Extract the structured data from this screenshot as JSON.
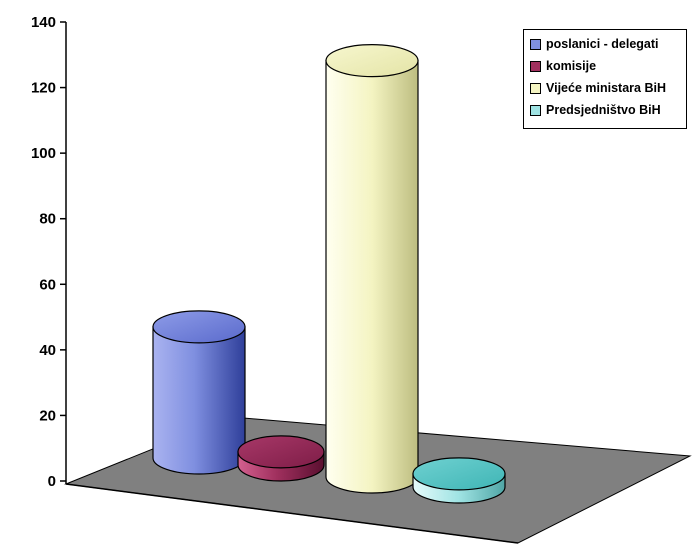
{
  "chart_data": {
    "type": "bar",
    "style": "3d-cylinder",
    "title": "",
    "xlabel": "",
    "ylabel": "",
    "ylim": [
      0,
      140
    ],
    "yticks": [
      0,
      20,
      40,
      60,
      80,
      100,
      120,
      140
    ],
    "grid": false,
    "legend_position": "top-right",
    "floor_color": "#808080",
    "series": [
      {
        "name": "poslanici - delegati",
        "value": 40,
        "color": "#7f8fe0"
      },
      {
        "name": "komisije",
        "value": 4,
        "color": "#a0305e"
      },
      {
        "name": "Vijeće ministara BiH",
        "value": 127,
        "color": "#f4f4c2"
      },
      {
        "name": "Predsjedništvo BiH",
        "value": 4,
        "color": "#9fe3e3"
      }
    ]
  }
}
